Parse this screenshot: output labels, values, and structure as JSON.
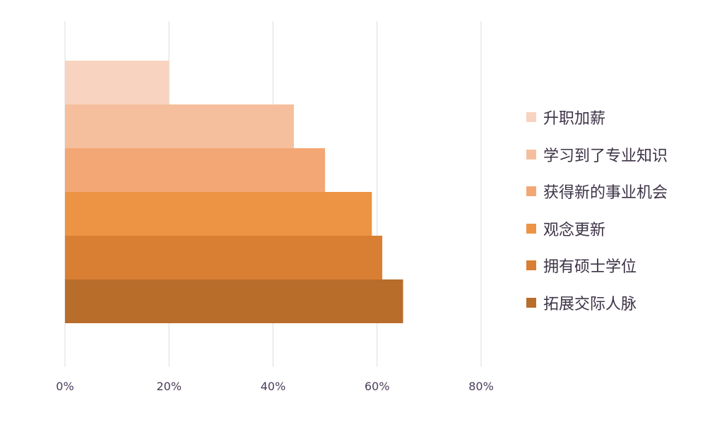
{
  "chart_data": {
    "type": "bar",
    "orientation": "horizontal",
    "stacked_overlap": true,
    "categories": [
      "升职加薪",
      "学习到了专业知识",
      "获得新的事业机会",
      "观念更新",
      "拥有硕士学位",
      "拓展交际人脉"
    ],
    "values": [
      20,
      44,
      50,
      59,
      61,
      65
    ],
    "colors": [
      "#f7d3c0",
      "#f5bf9d",
      "#f3a775",
      "#ec9444",
      "#d97f33",
      "#b86d2b"
    ],
    "xlim": [
      0,
      80
    ],
    "xticks": [
      0,
      20,
      40,
      60,
      80
    ],
    "xtick_labels": [
      "0%",
      "20%",
      "40%",
      "60%",
      "80%"
    ],
    "title": "",
    "xlabel": "",
    "ylabel": "",
    "grid": "vertical",
    "legend_position": "right"
  }
}
